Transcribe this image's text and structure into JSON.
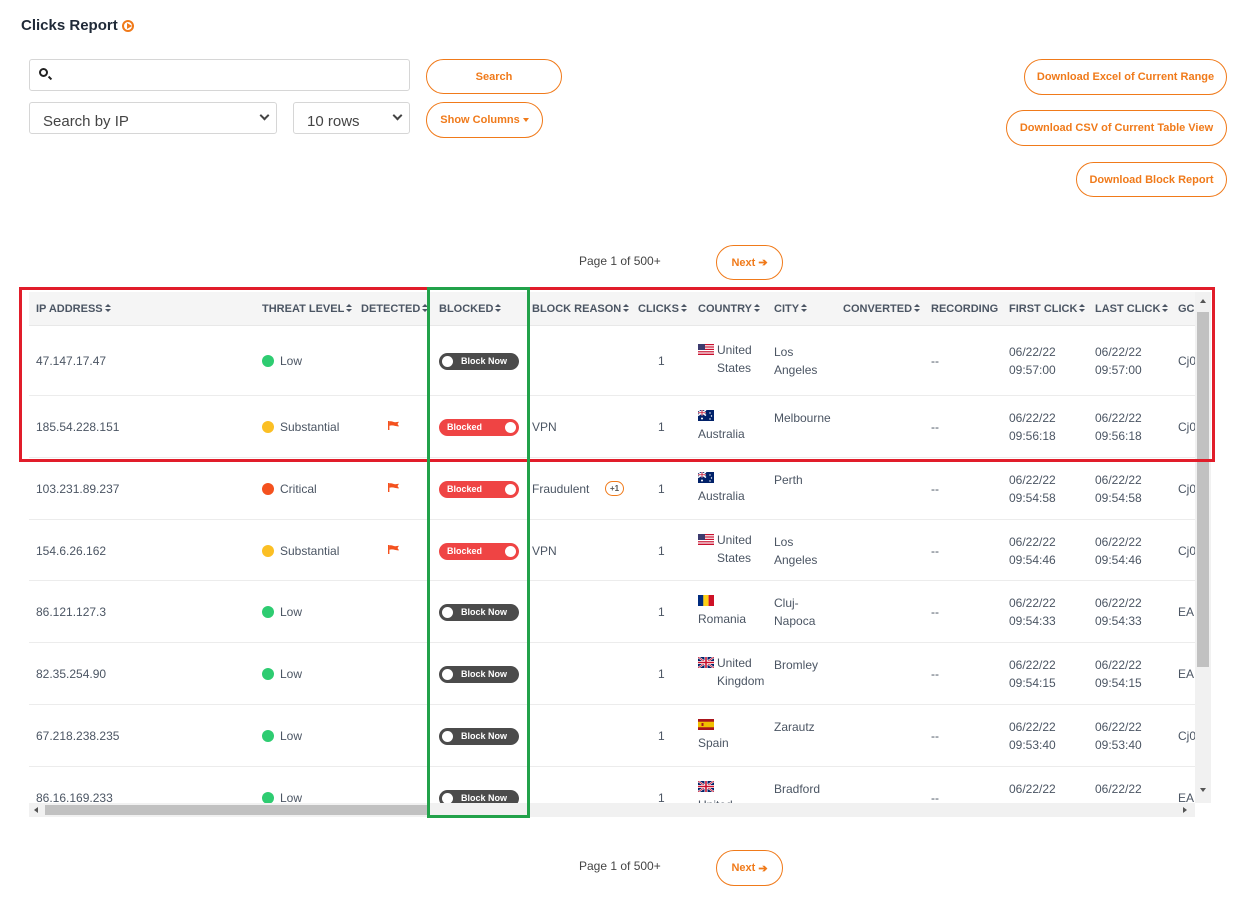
{
  "page": {
    "title": "Clicks Report",
    "title_icon": "play-circle-icon"
  },
  "search": {
    "placeholder": "",
    "value": "",
    "button": "Search"
  },
  "filters": {
    "search_by": "Search by IP",
    "rows": "10 rows",
    "show_columns": "Show Columns"
  },
  "downloads": {
    "excel": "Download Excel of Current Range",
    "csv": "Download CSV of Current Table View",
    "block_report": "Download Block Report"
  },
  "pagination": {
    "label": "Page 1 of 500+",
    "next": "Next"
  },
  "colors": {
    "accent": "#f07a1a",
    "low": "#2ecc71",
    "substantial": "#fbbf24",
    "critical": "#f4511e",
    "blocked": "#ef4444",
    "unblocked": "#4b4b4b",
    "highlight_red": "#e11d2a",
    "highlight_green": "#22a24a"
  },
  "table": {
    "columns": [
      "IP ADDRESS",
      "THREAT LEVEL",
      "DETECTED",
      "BLOCKED",
      "BLOCK REASON",
      "CLICKS",
      "COUNTRY",
      "CITY",
      "CONVERTED",
      "RECORDING",
      "FIRST CLICK",
      "LAST CLICK",
      "GC"
    ],
    "rows": [
      {
        "ip": "47.147.17.47",
        "threat": "Low",
        "detected": false,
        "blocked": false,
        "toggle": "Block Now",
        "reason": "",
        "extra": "",
        "clicks": "1",
        "country": "United States",
        "flag": "us",
        "city": "Los Angeles",
        "converted": "--",
        "first_date": "06/22/22",
        "first_time": "09:57:00",
        "last_date": "06/22/22",
        "last_time": "09:57:00",
        "gc": "Cj0"
      },
      {
        "ip": "185.54.228.151",
        "threat": "Substantial",
        "detected": true,
        "blocked": true,
        "toggle": "Blocked",
        "reason": "VPN",
        "extra": "",
        "clicks": "1",
        "country": "Australia",
        "flag": "au",
        "city": "Melbourne",
        "converted": "--",
        "first_date": "06/22/22",
        "first_time": "09:56:18",
        "last_date": "06/22/22",
        "last_time": "09:56:18",
        "gc": "Cj0"
      },
      {
        "ip": "103.231.89.237",
        "threat": "Critical",
        "detected": true,
        "blocked": true,
        "toggle": "Blocked",
        "reason": "Fraudulent",
        "extra": "+1",
        "clicks": "1",
        "country": "Australia",
        "flag": "au",
        "city": "Perth",
        "converted": "--",
        "first_date": "06/22/22",
        "first_time": "09:54:58",
        "last_date": "06/22/22",
        "last_time": "09:54:58",
        "gc": "Cj0"
      },
      {
        "ip": "154.6.26.162",
        "threat": "Substantial",
        "detected": true,
        "blocked": true,
        "toggle": "Blocked",
        "reason": "VPN",
        "extra": "",
        "clicks": "1",
        "country": "United States",
        "flag": "us",
        "city": "Los Angeles",
        "converted": "--",
        "first_date": "06/22/22",
        "first_time": "09:54:46",
        "last_date": "06/22/22",
        "last_time": "09:54:46",
        "gc": "Cj0"
      },
      {
        "ip": "86.121.127.3",
        "threat": "Low",
        "detected": false,
        "blocked": false,
        "toggle": "Block Now",
        "reason": "",
        "extra": "",
        "clicks": "1",
        "country": "Romania",
        "flag": "ro",
        "city": "Cluj-Napoca",
        "converted": "--",
        "first_date": "06/22/22",
        "first_time": "09:54:33",
        "last_date": "06/22/22",
        "last_time": "09:54:33",
        "gc": "EAI"
      },
      {
        "ip": "82.35.254.90",
        "threat": "Low",
        "detected": false,
        "blocked": false,
        "toggle": "Block Now",
        "reason": "",
        "extra": "",
        "clicks": "1",
        "country": "United Kingdom",
        "flag": "gb",
        "city": "Bromley",
        "converted": "--",
        "first_date": "06/22/22",
        "first_time": "09:54:15",
        "last_date": "06/22/22",
        "last_time": "09:54:15",
        "gc": "EAI"
      },
      {
        "ip": "67.218.238.235",
        "threat": "Low",
        "detected": false,
        "blocked": false,
        "toggle": "Block Now",
        "reason": "",
        "extra": "",
        "clicks": "1",
        "country": "Spain",
        "flag": "es",
        "city": "Zarautz",
        "converted": "--",
        "first_date": "06/22/22",
        "first_time": "09:53:40",
        "last_date": "06/22/22",
        "last_time": "09:53:40",
        "gc": "Cj0"
      },
      {
        "ip": "86.16.169.233",
        "threat": "Low",
        "detected": false,
        "blocked": false,
        "toggle": "Block Now",
        "reason": "",
        "extra": "",
        "clicks": "1",
        "country": "United",
        "flag": "gb",
        "city": "Bradford",
        "converted": "--",
        "first_date": "06/22/22",
        "first_time": "",
        "last_date": "06/22/22",
        "last_time": "",
        "gc": "EAI"
      }
    ]
  }
}
